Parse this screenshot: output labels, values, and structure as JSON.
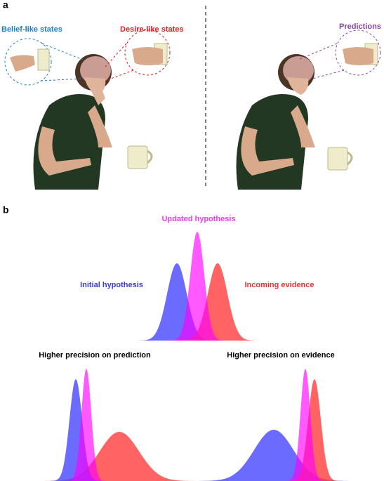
{
  "panel_a": {
    "label": "a",
    "belief": "Belief-like states",
    "desire": "Desire-like states",
    "predictions": "Predictions"
  },
  "panel_b": {
    "label": "b",
    "updated": "Updated hypothesis",
    "initial": "Initial hypothesis",
    "incoming": "Incoming evidence",
    "prediction_precision": "Higher precision on prediction",
    "evidence_precision": "Higher precision on evidence"
  }
}
